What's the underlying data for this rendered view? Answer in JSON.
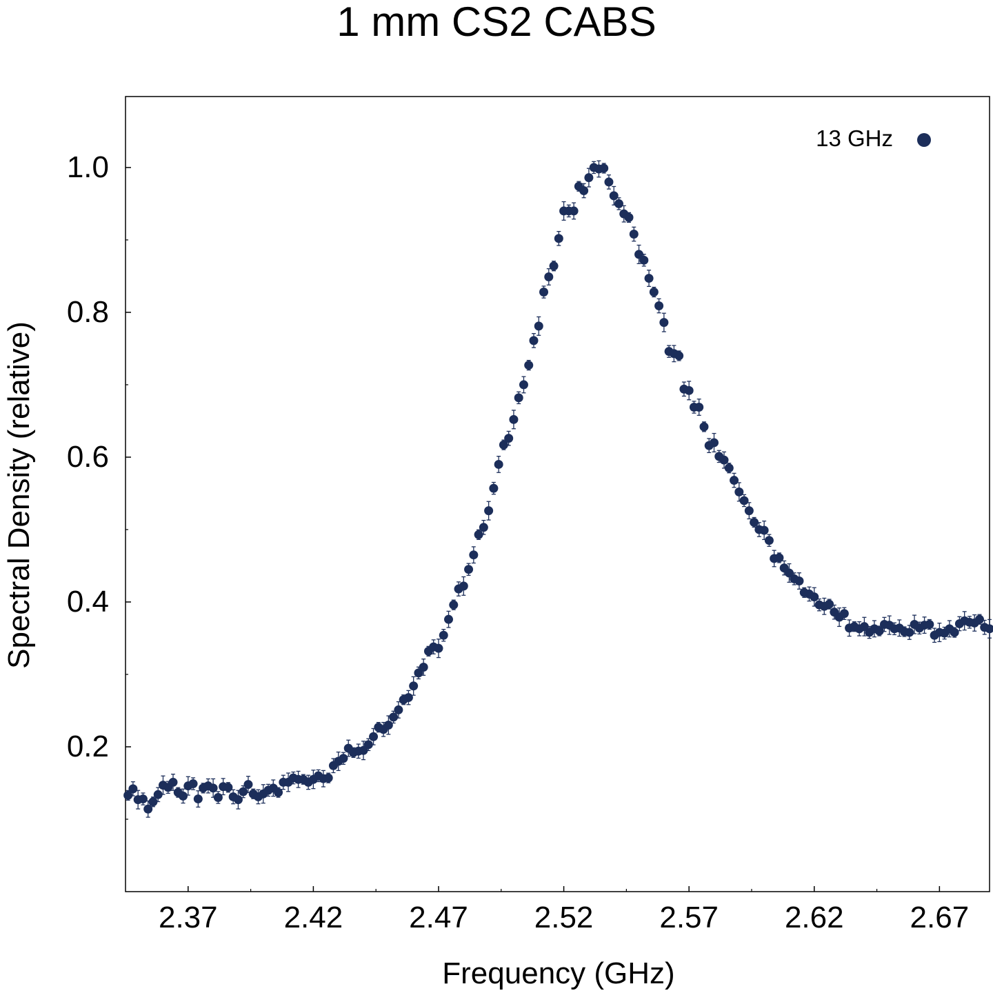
{
  "chart_data": {
    "type": "scatter",
    "title": "1 mm CS2 CABS",
    "xlabel": "Frequency (GHz)",
    "ylabel": "Spectral Density (relative)",
    "xlim": [
      2.345,
      2.69
    ],
    "ylim": [
      0.0,
      1.098
    ],
    "xticks": [
      "2.37",
      "2.42",
      "2.47",
      "2.52",
      "2.57",
      "2.62",
      "2.67"
    ],
    "yticks": [
      "0.2",
      "0.4",
      "0.6",
      "0.8",
      "1.0"
    ],
    "legend_position": "top-right",
    "grid": false,
    "error_bars": true,
    "marker_color": "#1c2e5a",
    "series": [
      {
        "name": "13 GHz",
        "points": [
          [
            2.346,
            0.133
          ],
          [
            2.348,
            0.142
          ],
          [
            2.35,
            0.127
          ],
          [
            2.352,
            0.128
          ],
          [
            2.354,
            0.114
          ],
          [
            2.356,
            0.124
          ],
          [
            2.358,
            0.134
          ],
          [
            2.36,
            0.147
          ],
          [
            2.362,
            0.144
          ],
          [
            2.364,
            0.151
          ],
          [
            2.366,
            0.137
          ],
          [
            2.368,
            0.132
          ],
          [
            2.37,
            0.146
          ],
          [
            2.372,
            0.149
          ],
          [
            2.374,
            0.128
          ],
          [
            2.376,
            0.143
          ],
          [
            2.378,
            0.146
          ],
          [
            2.38,
            0.143
          ],
          [
            2.382,
            0.13
          ],
          [
            2.384,
            0.145
          ],
          [
            2.386,
            0.144
          ],
          [
            2.388,
            0.131
          ],
          [
            2.39,
            0.127
          ],
          [
            2.392,
            0.138
          ],
          [
            2.394,
            0.148
          ],
          [
            2.396,
            0.135
          ],
          [
            2.398,
            0.131
          ],
          [
            2.4,
            0.135
          ],
          [
            2.402,
            0.14
          ],
          [
            2.404,
            0.143
          ],
          [
            2.406,
            0.137
          ],
          [
            2.408,
            0.151
          ],
          [
            2.41,
            0.151
          ],
          [
            2.412,
            0.157
          ],
          [
            2.414,
            0.155
          ],
          [
            2.416,
            0.155
          ],
          [
            2.418,
            0.151
          ],
          [
            2.42,
            0.155
          ],
          [
            2.422,
            0.16
          ],
          [
            2.424,
            0.156
          ],
          [
            2.426,
            0.157
          ],
          [
            2.428,
            0.174
          ],
          [
            2.43,
            0.18
          ],
          [
            2.432,
            0.184
          ],
          [
            2.434,
            0.198
          ],
          [
            2.436,
            0.192
          ],
          [
            2.438,
            0.194
          ],
          [
            2.44,
            0.195
          ],
          [
            2.442,
            0.203
          ],
          [
            2.444,
            0.214
          ],
          [
            2.446,
            0.227
          ],
          [
            2.448,
            0.224
          ],
          [
            2.45,
            0.23
          ],
          [
            2.452,
            0.241
          ],
          [
            2.454,
            0.251
          ],
          [
            2.456,
            0.265
          ],
          [
            2.458,
            0.268
          ],
          [
            2.46,
            0.284
          ],
          [
            2.462,
            0.302
          ],
          [
            2.464,
            0.31
          ],
          [
            2.466,
            0.332
          ],
          [
            2.468,
            0.338
          ],
          [
            2.47,
            0.336
          ],
          [
            2.472,
            0.354
          ],
          [
            2.474,
            0.376
          ],
          [
            2.476,
            0.396
          ],
          [
            2.478,
            0.418
          ],
          [
            2.48,
            0.422
          ],
          [
            2.482,
            0.445
          ],
          [
            2.484,
            0.465
          ],
          [
            2.486,
            0.493
          ],
          [
            2.488,
            0.503
          ],
          [
            2.49,
            0.526
          ],
          [
            2.492,
            0.557
          ],
          [
            2.494,
            0.59
          ],
          [
            2.496,
            0.617
          ],
          [
            2.498,
            0.626
          ],
          [
            2.5,
            0.652
          ],
          [
            2.502,
            0.682
          ],
          [
            2.504,
            0.7
          ],
          [
            2.506,
            0.727
          ],
          [
            2.508,
            0.761
          ],
          [
            2.51,
            0.781
          ],
          [
            2.512,
            0.828
          ],
          [
            2.514,
            0.849
          ],
          [
            2.516,
            0.864
          ],
          [
            2.518,
            0.902
          ],
          [
            2.52,
            0.94
          ],
          [
            2.522,
            0.94
          ],
          [
            2.524,
            0.94
          ],
          [
            2.526,
            0.974
          ],
          [
            2.528,
            0.968
          ],
          [
            2.53,
            0.986
          ],
          [
            2.532,
            1.0
          ],
          [
            2.534,
            0.998
          ],
          [
            2.536,
            0.999
          ],
          [
            2.538,
            0.98
          ],
          [
            2.54,
            0.961
          ],
          [
            2.542,
            0.95
          ],
          [
            2.544,
            0.936
          ],
          [
            2.546,
            0.931
          ],
          [
            2.548,
            0.908
          ],
          [
            2.55,
            0.88
          ],
          [
            2.552,
            0.872
          ],
          [
            2.554,
            0.847
          ],
          [
            2.556,
            0.828
          ],
          [
            2.558,
            0.809
          ],
          [
            2.56,
            0.786
          ],
          [
            2.562,
            0.746
          ],
          [
            2.564,
            0.743
          ],
          [
            2.566,
            0.74
          ],
          [
            2.568,
            0.694
          ],
          [
            2.57,
            0.692
          ],
          [
            2.572,
            0.669
          ],
          [
            2.574,
            0.669
          ],
          [
            2.576,
            0.642
          ],
          [
            2.578,
            0.616
          ],
          [
            2.58,
            0.62
          ],
          [
            2.582,
            0.601
          ],
          [
            2.584,
            0.596
          ],
          [
            2.586,
            0.585
          ],
          [
            2.588,
            0.568
          ],
          [
            2.59,
            0.552
          ],
          [
            2.592,
            0.54
          ],
          [
            2.594,
            0.526
          ],
          [
            2.596,
            0.51
          ],
          [
            2.598,
            0.5
          ],
          [
            2.6,
            0.499
          ],
          [
            2.602,
            0.485
          ],
          [
            2.604,
            0.46
          ],
          [
            2.606,
            0.461
          ],
          [
            2.608,
            0.447
          ],
          [
            2.61,
            0.44
          ],
          [
            2.612,
            0.432
          ],
          [
            2.614,
            0.429
          ],
          [
            2.616,
            0.413
          ],
          [
            2.618,
            0.411
          ],
          [
            2.62,
            0.407
          ],
          [
            2.622,
            0.396
          ],
          [
            2.624,
            0.394
          ],
          [
            2.626,
            0.397
          ],
          [
            2.628,
            0.386
          ],
          [
            2.63,
            0.379
          ],
          [
            2.632,
            0.384
          ],
          [
            2.634,
            0.364
          ],
          [
            2.636,
            0.366
          ],
          [
            2.638,
            0.363
          ],
          [
            2.64,
            0.366
          ],
          [
            2.642,
            0.358
          ],
          [
            2.644,
            0.363
          ],
          [
            2.646,
            0.36
          ],
          [
            2.648,
            0.369
          ],
          [
            2.65,
            0.368
          ],
          [
            2.652,
            0.363
          ],
          [
            2.654,
            0.364
          ],
          [
            2.656,
            0.359
          ],
          [
            2.658,
            0.358
          ],
          [
            2.66,
            0.369
          ],
          [
            2.662,
            0.364
          ],
          [
            2.664,
            0.368
          ],
          [
            2.666,
            0.369
          ],
          [
            2.668,
            0.354
          ],
          [
            2.67,
            0.358
          ],
          [
            2.672,
            0.357
          ],
          [
            2.674,
            0.363
          ],
          [
            2.676,
            0.358
          ],
          [
            2.678,
            0.37
          ],
          [
            2.68,
            0.374
          ],
          [
            2.682,
            0.372
          ],
          [
            2.684,
            0.371
          ],
          [
            2.686,
            0.376
          ],
          [
            2.688,
            0.365
          ],
          [
            2.69,
            0.363
          ]
        ]
      }
    ]
  }
}
